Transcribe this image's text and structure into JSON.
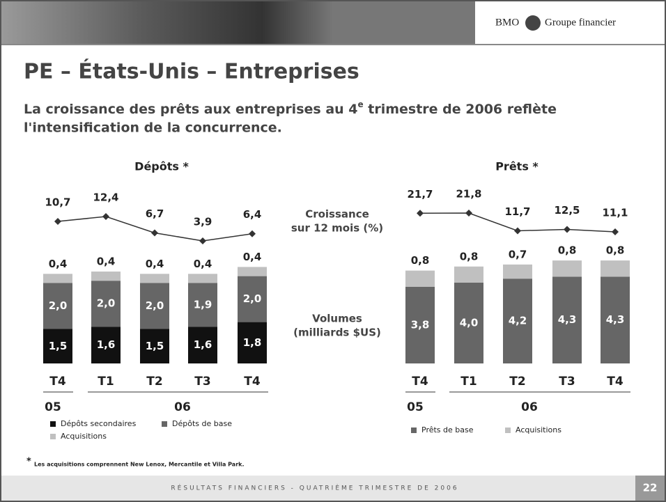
{
  "header": {
    "logo": "BMO",
    "brand": "Groupe financier"
  },
  "title": "PE – États-Unis – Entreprises",
  "subtitle": {
    "before": "La croissance des prêts aux entreprises au 4",
    "sup": "e",
    "after": " trimestre de 2006 reflète",
    "line2": "l'intensification de la concurrence."
  },
  "middle_labels": {
    "growth": [
      "Croissance",
      "sur 12 mois (%)"
    ],
    "volumes": [
      "Volumes",
      "(milliards $US)"
    ]
  },
  "footnote": {
    "star": "*",
    "text": "Les acquisitions comprennent New Lenox, Mercantile et Villa Park."
  },
  "footer": {
    "text": "RÉSULTATS FINANCIERS - QUATRIÈME TRIMESTRE DE 2006",
    "page": "22"
  },
  "chart_data": [
    {
      "type": "stacked_bar",
      "title": "Dépôts *",
      "categories": [
        "T4",
        "T1",
        "T2",
        "T3",
        "T4"
      ],
      "periods": [
        "05",
        "06"
      ],
      "series": [
        {
          "name": "Dépôts secondaires",
          "color": "#111111",
          "values": [
            1.5,
            1.6,
            1.5,
            1.6,
            1.8
          ],
          "value_labels": [
            "1,5",
            "1,6",
            "1,5",
            "1,6",
            "1,8"
          ]
        },
        {
          "name": "Dépôts de base",
          "color": "#666666",
          "values": [
            2.0,
            2.0,
            2.0,
            1.9,
            2.0
          ],
          "value_labels": [
            "2,0",
            "2,0",
            "2,0",
            "1,9",
            "2,0"
          ]
        },
        {
          "name": "Acquisitions",
          "color": "#c0c0c0",
          "values": [
            0.4,
            0.4,
            0.4,
            0.4,
            0.4
          ],
          "value_labels": [
            "0,4",
            "0,4",
            "0,4",
            "0,4",
            "0,4"
          ]
        }
      ],
      "line": {
        "color": "#333333",
        "values": [
          10.7,
          12.4,
          6.7,
          3.9,
          6.4
        ],
        "value_labels": [
          "10,7",
          "12,4",
          "6,7",
          "3,9",
          "6,4"
        ]
      }
    },
    {
      "type": "stacked_bar",
      "title": "Prêts *",
      "categories": [
        "T4",
        "T1",
        "T2",
        "T3",
        "T4"
      ],
      "periods": [
        "05",
        "06"
      ],
      "series": [
        {
          "name": "Prêts de base",
          "color": "#666666",
          "values": [
            3.8,
            4.0,
            4.2,
            4.3,
            4.3
          ],
          "value_labels": [
            "3,8",
            "4,0",
            "4,2",
            "4,3",
            "4,3"
          ]
        },
        {
          "name": "Acquisitions",
          "color": "#c0c0c0",
          "values": [
            0.8,
            0.8,
            0.7,
            0.8,
            0.8
          ],
          "value_labels": [
            "0,8",
            "0,8",
            "0,7",
            "0,8",
            "0,8"
          ]
        }
      ],
      "line": {
        "color": "#333333",
        "values": [
          21.7,
          21.8,
          11.7,
          12.5,
          11.1
        ],
        "value_labels": [
          "21,7",
          "21,8",
          "11,7",
          "12,5",
          "11,1"
        ]
      }
    }
  ]
}
